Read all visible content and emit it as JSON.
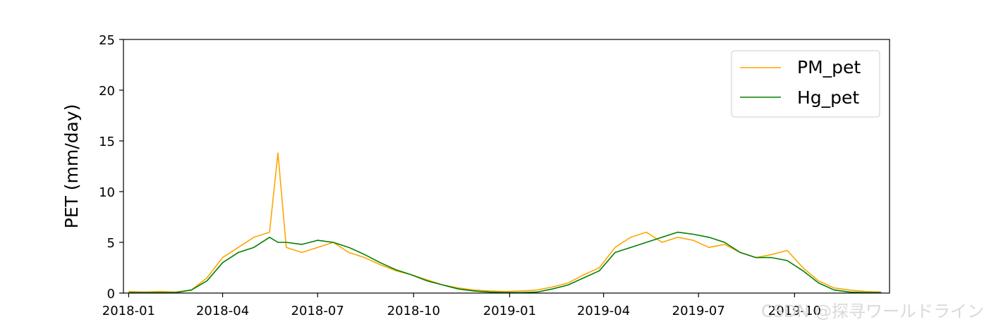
{
  "chart_data": {
    "type": "line",
    "title": "",
    "xlabel": "",
    "ylabel": "PET (mm/day)",
    "x_range": [
      "2017-12-27",
      "2019-12-31"
    ],
    "ylim": [
      0,
      25
    ],
    "y_ticks": [
      0,
      5,
      10,
      15,
      20,
      25
    ],
    "x_ticks": [
      "2018-01",
      "2018-04",
      "2018-07",
      "2018-10",
      "2019-01",
      "2019-04",
      "2019-07",
      "2019-10"
    ],
    "grid": false,
    "legend_position": "top-right",
    "x": [
      "2018-01-01",
      "2018-01-16",
      "2018-01-31",
      "2018-02-15",
      "2018-03-02",
      "2018-03-17",
      "2018-04-01",
      "2018-04-16",
      "2018-05-01",
      "2018-05-16",
      "2018-05-24",
      "2018-06-01",
      "2018-06-16",
      "2018-07-01",
      "2018-07-16",
      "2018-07-31",
      "2018-08-15",
      "2018-08-30",
      "2018-09-14",
      "2018-09-29",
      "2018-10-14",
      "2018-10-29",
      "2018-11-13",
      "2018-11-28",
      "2018-12-13",
      "2018-12-28",
      "2019-01-12",
      "2019-01-27",
      "2019-02-11",
      "2019-02-26",
      "2019-03-13",
      "2019-03-28",
      "2019-04-12",
      "2019-04-27",
      "2019-05-12",
      "2019-05-27",
      "2019-06-11",
      "2019-06-26",
      "2019-07-11",
      "2019-07-26",
      "2019-08-10",
      "2019-08-25",
      "2019-09-09",
      "2019-09-24",
      "2019-10-09",
      "2019-10-24",
      "2019-11-08",
      "2019-11-23",
      "2019-12-08",
      "2019-12-23"
    ],
    "series": [
      {
        "name": "PM_pet",
        "color": "#FFA500",
        "values": [
          0.15,
          0.1,
          0.15,
          0.1,
          0.3,
          1.5,
          3.5,
          4.5,
          5.5,
          6.0,
          13.8,
          4.5,
          4.0,
          4.5,
          5.0,
          4.0,
          3.5,
          2.8,
          2.2,
          1.8,
          1.3,
          0.8,
          0.5,
          0.3,
          0.2,
          0.15,
          0.2,
          0.3,
          0.6,
          1.0,
          1.8,
          2.5,
          4.5,
          5.5,
          6.0,
          5.0,
          5.5,
          5.2,
          4.5,
          4.8,
          4.0,
          3.5,
          3.8,
          4.2,
          2.5,
          1.2,
          0.5,
          0.3,
          0.15,
          0.1
        ]
      },
      {
        "name": "Hg_pet",
        "color": "#008000",
        "values": [
          0.05,
          0.05,
          0.05,
          0.05,
          0.3,
          1.2,
          3.0,
          4.0,
          4.5,
          5.5,
          5.0,
          5.0,
          4.8,
          5.2,
          5.0,
          4.5,
          3.8,
          3.0,
          2.3,
          1.8,
          1.2,
          0.8,
          0.4,
          0.2,
          0.1,
          0.05,
          0.05,
          0.1,
          0.4,
          0.8,
          1.5,
          2.2,
          4.0,
          4.5,
          5.0,
          5.5,
          6.0,
          5.8,
          5.5,
          5.0,
          4.0,
          3.5,
          3.5,
          3.2,
          2.2,
          1.0,
          0.3,
          0.1,
          0.05,
          0.05
        ]
      }
    ]
  },
  "watermark": "CSDN @探寻ワールドライン"
}
